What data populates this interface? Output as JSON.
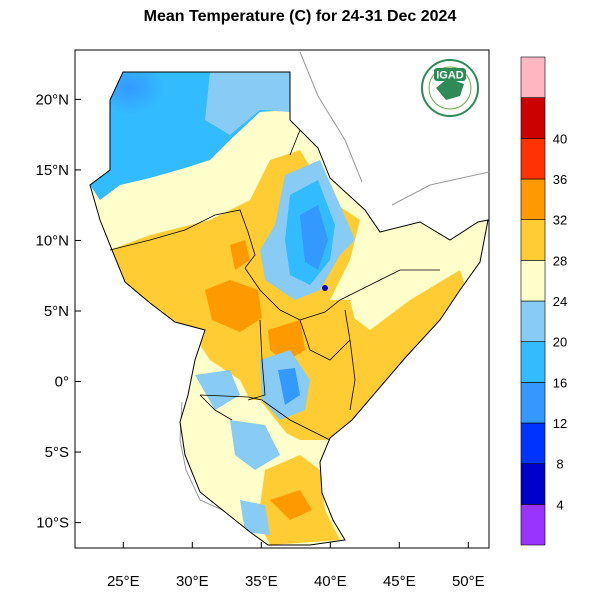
{
  "title": "Mean Temperature (C) for 24-31 Dec 2024",
  "logo": {
    "text": "IGAD"
  },
  "lat_ticks": [
    {
      "label": "20°N",
      "value": 20
    },
    {
      "label": "15°N",
      "value": 15
    },
    {
      "label": "10°N",
      "value": 10
    },
    {
      "label": "5°N",
      "value": 5
    },
    {
      "label": "0°",
      "value": 0
    },
    {
      "label": "5°S",
      "value": -5
    },
    {
      "label": "10°S",
      "value": -10
    }
  ],
  "lon_ticks": [
    {
      "label": "25°E",
      "value": 25
    },
    {
      "label": "30°E",
      "value": 30
    },
    {
      "label": "35°E",
      "value": 35
    },
    {
      "label": "40°E",
      "value": 40
    },
    {
      "label": "45°E",
      "value": 45
    },
    {
      "label": "50°E",
      "value": 50
    }
  ],
  "extent": {
    "lon": [
      21.5,
      51.5
    ],
    "lat": [
      -11.8,
      23.5
    ]
  },
  "colorbar": {
    "colors": [
      "#9933ff",
      "#0000cc",
      "#0033ff",
      "#3399ff",
      "#33bbff",
      "#88ccf5",
      "#ffffcc",
      "#ffcc33",
      "#ff9900",
      "#ff3300",
      "#cc0000",
      "#ffb6c1"
    ],
    "labels": [
      "4",
      "8",
      "12",
      "16",
      "20",
      "24",
      "28",
      "32",
      "36",
      "40"
    ]
  },
  "chart_data": {
    "type": "heatmap",
    "title": "Mean Temperature (C) for 24-31 Dec 2024",
    "units": "C",
    "levels": [
      4,
      8,
      12,
      16,
      20,
      24,
      28,
      32,
      36,
      40
    ]
  }
}
